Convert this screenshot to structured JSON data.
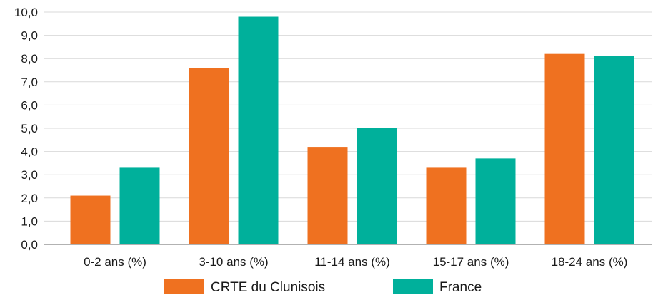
{
  "chart_data": {
    "type": "bar",
    "categories": [
      "0-2 ans (%)",
      "3-10 ans (%)",
      "11-14 ans (%)",
      "15-17 ans (%)",
      "18-24 ans (%)"
    ],
    "series": [
      {
        "name": "CRTE du Clunisois",
        "color": "#ef7120",
        "values": [
          2.1,
          7.6,
          4.2,
          3.3,
          8.2
        ]
      },
      {
        "name": "France",
        "color": "#00b09b",
        "values": [
          3.3,
          9.8,
          5.0,
          3.7,
          8.1
        ]
      }
    ],
    "yticks": [
      "0,0",
      "1,0",
      "2,0",
      "3,0",
      "4,0",
      "5,0",
      "6,0",
      "7,0",
      "8,0",
      "9,0",
      "10,0"
    ],
    "ylim": [
      0,
      10
    ],
    "grid": true,
    "legend_position": "bottom-center"
  }
}
